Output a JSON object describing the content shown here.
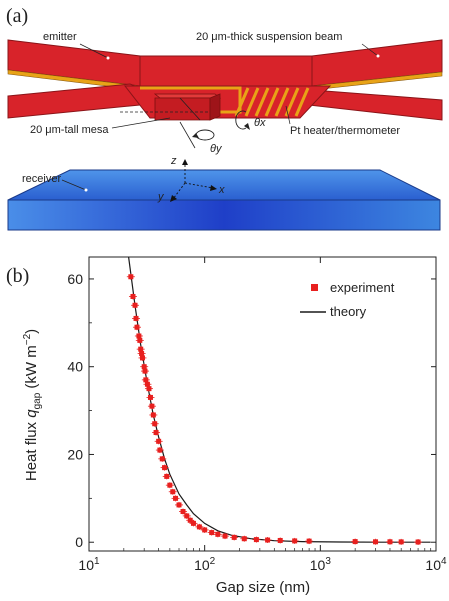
{
  "panel_a": {
    "label": "(a)",
    "annotations": {
      "emitter": "emitter",
      "beam": "20 μm-thick suspension beam",
      "mesa": "20 μm-tall mesa",
      "heater": "Pt heater/thermometer",
      "receiver": "receiver",
      "axis_z": "z",
      "axis_y": "y",
      "axis_x": "x",
      "theta_y": "θy",
      "theta_x": "θx"
    },
    "colors": {
      "emitter_red": "#d8232a",
      "heater_gold": "#e8a317",
      "receiver_blue": "#2f6fd8"
    }
  },
  "panel_b": {
    "label": "(b)"
  },
  "chart_data": {
    "type": "scatter",
    "title": "",
    "xlabel": "Gap size (nm)",
    "ylabel_main": "Heat flux ",
    "ylabel_q": "q",
    "ylabel_sub": "gap",
    "ylabel_unit": " (kW m",
    "ylabel_exp": "−2",
    "ylabel_close": ")",
    "x_scale": "log",
    "xlim": [
      10,
      10000
    ],
    "ylim": [
      -2,
      65
    ],
    "x_ticks": [
      {
        "value": 10,
        "base": "10",
        "exp": "1"
      },
      {
        "value": 100,
        "base": "10",
        "exp": "2"
      },
      {
        "value": 1000,
        "base": "10",
        "exp": "3"
      },
      {
        "value": 10000,
        "base": "10",
        "exp": "4"
      }
    ],
    "y_ticks": [
      0,
      20,
      40,
      60
    ],
    "legend": {
      "placement": "top-right"
    },
    "grid": false,
    "series": [
      {
        "name": "experiment",
        "marker": "square",
        "color": "#e8201f",
        "points": [
          [
            23,
            60.5
          ],
          [
            24,
            56
          ],
          [
            25,
            54
          ],
          [
            25.5,
            51
          ],
          [
            26,
            49
          ],
          [
            27,
            47
          ],
          [
            27.5,
            46
          ],
          [
            28,
            44
          ],
          [
            28.5,
            43
          ],
          [
            29,
            42
          ],
          [
            30,
            40
          ],
          [
            30.5,
            39
          ],
          [
            31,
            37
          ],
          [
            32,
            36
          ],
          [
            33,
            35
          ],
          [
            34,
            33
          ],
          [
            35,
            31
          ],
          [
            36,
            29
          ],
          [
            37,
            27
          ],
          [
            38,
            25
          ],
          [
            40,
            23
          ],
          [
            41,
            21
          ],
          [
            43,
            19
          ],
          [
            45,
            17
          ],
          [
            47,
            15
          ],
          [
            50,
            13
          ],
          [
            53,
            11.5
          ],
          [
            56,
            10
          ],
          [
            60,
            8.5
          ],
          [
            65,
            7
          ],
          [
            70,
            6
          ],
          [
            75,
            5
          ],
          [
            80,
            4.3
          ],
          [
            90,
            3.5
          ],
          [
            100,
            2.8
          ],
          [
            115,
            2.2
          ],
          [
            130,
            1.8
          ],
          [
            150,
            1.4
          ],
          [
            180,
            1.1
          ],
          [
            220,
            0.8
          ],
          [
            280,
            0.6
          ],
          [
            350,
            0.5
          ],
          [
            450,
            0.4
          ],
          [
            600,
            0.3
          ],
          [
            800,
            0.25
          ],
          [
            2000,
            0.15
          ],
          [
            3000,
            0.1
          ],
          [
            4000,
            0.1
          ],
          [
            5000,
            0.08
          ],
          [
            7000,
            0.05
          ]
        ]
      },
      {
        "name": "theory",
        "marker": "line",
        "color": "#1a1a1a",
        "points": [
          [
            22,
            65
          ],
          [
            25,
            54
          ],
          [
            28,
            45
          ],
          [
            32,
            36
          ],
          [
            36,
            29
          ],
          [
            40,
            24
          ],
          [
            45,
            19
          ],
          [
            50,
            15.5
          ],
          [
            60,
            11
          ],
          [
            70,
            8.5
          ],
          [
            80,
            6.5
          ],
          [
            100,
            4.3
          ],
          [
            130,
            2.6
          ],
          [
            170,
            1.6
          ],
          [
            250,
            0.8
          ],
          [
            400,
            0.35
          ],
          [
            700,
            0.15
          ],
          [
            1500,
            0.05
          ],
          [
            4000,
            0.01
          ],
          [
            9000,
            0.0
          ]
        ]
      }
    ]
  }
}
